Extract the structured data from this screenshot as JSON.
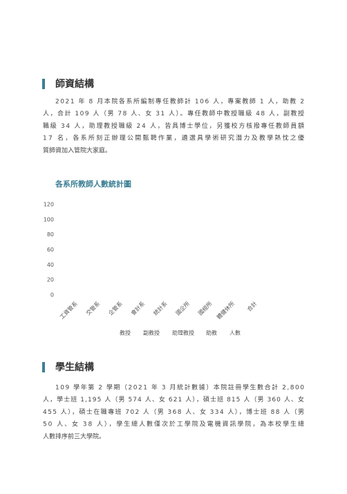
{
  "sections": [
    {
      "heading": "師資結構",
      "lines": [
        "2021 年 8 月本院各系所編制專任教師計 106 人，專案教師 1 人，助教 2",
        "人，合計 109 人（男 78 人、女 31 人）。專任教師中教授職級 48 人，副教授",
        "職級 34 人，助理教授職級 24 人，皆具博士學位，另獲校方核撥專任教師員額",
        "17 名，各系所刻正辦理公開甄聘作業，遴選具學術研究潛力及教學熱忱之優",
        "質師資加入管院大家庭。"
      ]
    },
    {
      "heading": "學生結構",
      "lines": [
        "109 學年第 2 學期（2021 年 3 月統計數據）本院註冊學生數合計 2,800",
        "人，學士班 1,195 人（男 574 人、女 621 人），碩士班 815 人（男 360 人、女",
        "455 人），碩士在職專班 702 人（男 368 人、女 334 人），博士班 88 人（男",
        "50 人、女 38 人），學生總人數僅次於工學院及電機資訊學院，為本校學生總",
        "人數排序前三大學院。"
      ]
    }
  ],
  "chart_data": {
    "type": "bar",
    "title": "各系所教師人數統計圖",
    "categories": [
      "工資管系",
      "交管系",
      "企管系",
      "會計系",
      "統計系",
      "國企所",
      "國經所",
      "體健休所",
      "合計"
    ],
    "series": [
      {
        "name": "教授"
      },
      {
        "name": "副教授"
      },
      {
        "name": "助理教授"
      },
      {
        "name": "助教"
      },
      {
        "name": "人數"
      }
    ],
    "ylim": [
      0,
      120
    ],
    "yticks": [
      0,
      20,
      40,
      60,
      80,
      100,
      120
    ]
  }
}
